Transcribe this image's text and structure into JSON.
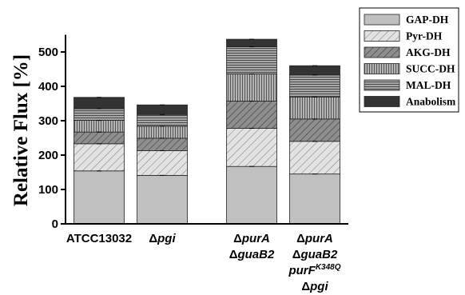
{
  "chart_data": {
    "type": "bar",
    "stacked": true,
    "ylabel": "Relative Flux [%]",
    "xlabel": "",
    "title": "",
    "ylim": [
      0,
      550
    ],
    "yticks": [
      0,
      100,
      200,
      300,
      400,
      500
    ],
    "legend_position": "top-right",
    "categories": [
      {
        "lines": [
          [
            {
              "t": "ATCC13032"
            }
          ]
        ]
      },
      {
        "lines": [
          [
            {
              "t": "Δ"
            },
            {
              "t": "pgi",
              "i": true
            }
          ]
        ]
      },
      {
        "lines": [
          [
            {
              "t": "Δ"
            },
            {
              "t": "purA",
              "i": true
            }
          ],
          [
            {
              "t": "Δ"
            },
            {
              "t": "guaB2",
              "i": true
            }
          ]
        ]
      },
      {
        "lines": [
          [
            {
              "t": "Δ"
            },
            {
              "t": "purA",
              "i": true
            }
          ],
          [
            {
              "t": "Δ"
            },
            {
              "t": "guaB2",
              "i": true
            }
          ],
          [
            {
              "t": "purF",
              "i": true
            },
            {
              "t": "K348Q",
              "i": true,
              "sup": true
            }
          ],
          [
            {
              "t": "Δ"
            },
            {
              "t": "pgi",
              "i": true
            }
          ]
        ]
      }
    ],
    "series": [
      {
        "name": "GAP-DH",
        "values": [
          154,
          141,
          167,
          145
        ],
        "pattern": "solid-light",
        "color": "#c0c0c0"
      },
      {
        "name": "Pyr-DH",
        "values": [
          79,
          72,
          111,
          95
        ],
        "pattern": "diag-light",
        "color": "#dcdcdc"
      },
      {
        "name": "AKG-DH",
        "values": [
          34,
          36,
          79,
          65
        ],
        "pattern": "diag-dark",
        "color": "#8c8c8c"
      },
      {
        "name": "SUCC-DH",
        "values": [
          34,
          35,
          79,
          64
        ],
        "pattern": "vertical",
        "color": "#a0a0a0"
      },
      {
        "name": "MAL-DH",
        "values": [
          34,
          34,
          79,
          64
        ],
        "pattern": "horizontal",
        "color": "#8c8c8c"
      },
      {
        "name": "Anabolism",
        "values": [
          33,
          28,
          22,
          27
        ],
        "pattern": "solid-dark",
        "color": "#333333"
      }
    ]
  }
}
